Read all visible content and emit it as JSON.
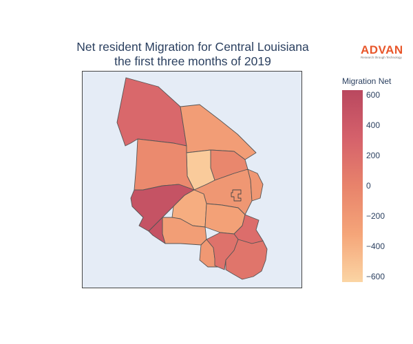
{
  "title": {
    "line1": "Net resident Migration for Central Louisiana",
    "line2": "the first three months of 2019"
  },
  "logo": {
    "word": "ADVAN",
    "tagline": "Research through Technology"
  },
  "colorbar": {
    "title": "Migration Net",
    "ticks": [
      "600",
      "400",
      "200",
      "0",
      "−200",
      "−400",
      "−600"
    ],
    "range": [
      -650,
      640
    ],
    "colorscale": [
      "#fbd5a4",
      "#f5a579",
      "#e8836b",
      "#d5616b",
      "#b9485f"
    ]
  },
  "regions": [
    {
      "id": "r1",
      "value": 250
    },
    {
      "id": "r2",
      "value": -250
    },
    {
      "id": "r3",
      "value": -40
    },
    {
      "id": "r4",
      "value": -580
    },
    {
      "id": "r5",
      "value": -70
    },
    {
      "id": "r6",
      "value": -190
    },
    {
      "id": "r7",
      "value": 500
    },
    {
      "id": "r8",
      "value": -380
    },
    {
      "id": "r9",
      "value": -290
    },
    {
      "id": "r10",
      "value": -260
    },
    {
      "id": "r11",
      "value": 200
    },
    {
      "id": "r12",
      "value": -200
    },
    {
      "id": "r13",
      "value": 160
    },
    {
      "id": "r14",
      "value": 60
    },
    {
      "id": "r15",
      "value": 130
    },
    {
      "id": "r16",
      "value": -150
    }
  ]
}
